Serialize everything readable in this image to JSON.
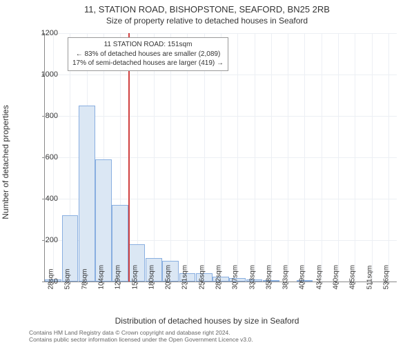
{
  "title_main": "11, STATION ROAD, BISHOPSTONE, SEAFORD, BN25 2RB",
  "title_sub": "Size of property relative to detached houses in Seaford",
  "ylabel": "Number of detached properties",
  "xlabel": "Distribution of detached houses by size in Seaford",
  "chart": {
    "type": "histogram",
    "background_color": "#ffffff",
    "grid_color": "#eceff4",
    "axis_color": "#888888",
    "bar_fill": "#dbe7f4",
    "bar_stroke": "#88aee0",
    "ref_line_color": "#d04040",
    "ref_line_x_index": 5,
    "ylim": [
      0,
      1200
    ],
    "ytick_step": 200,
    "x_categories": [
      "28sqm",
      "53sqm",
      "78sqm",
      "104sqm",
      "129sqm",
      "155sqm",
      "180sqm",
      "205sqm",
      "231sqm",
      "256sqm",
      "282sqm",
      "307sqm",
      "333sqm",
      "358sqm",
      "383sqm",
      "409sqm",
      "434sqm",
      "460sqm",
      "485sqm",
      "511sqm",
      "536sqm"
    ],
    "values": [
      10,
      320,
      850,
      590,
      370,
      180,
      115,
      100,
      40,
      40,
      25,
      18,
      10,
      4,
      0,
      4,
      0,
      0,
      0,
      0,
      0
    ],
    "bar_width_ratio": 0.98,
    "label_fontsize": 12,
    "tick_fontsize": 11
  },
  "annotation": {
    "line1": "11 STATION ROAD: 151sqm",
    "line2": "← 83% of detached houses are smaller (2,089)",
    "line3": "17% of semi-detached houses are larger (419) →"
  },
  "footer": {
    "line1": "Contains HM Land Registry data © Crown copyright and database right 2024.",
    "line2": "Contains public sector information licensed under the Open Government Licence v3.0."
  }
}
